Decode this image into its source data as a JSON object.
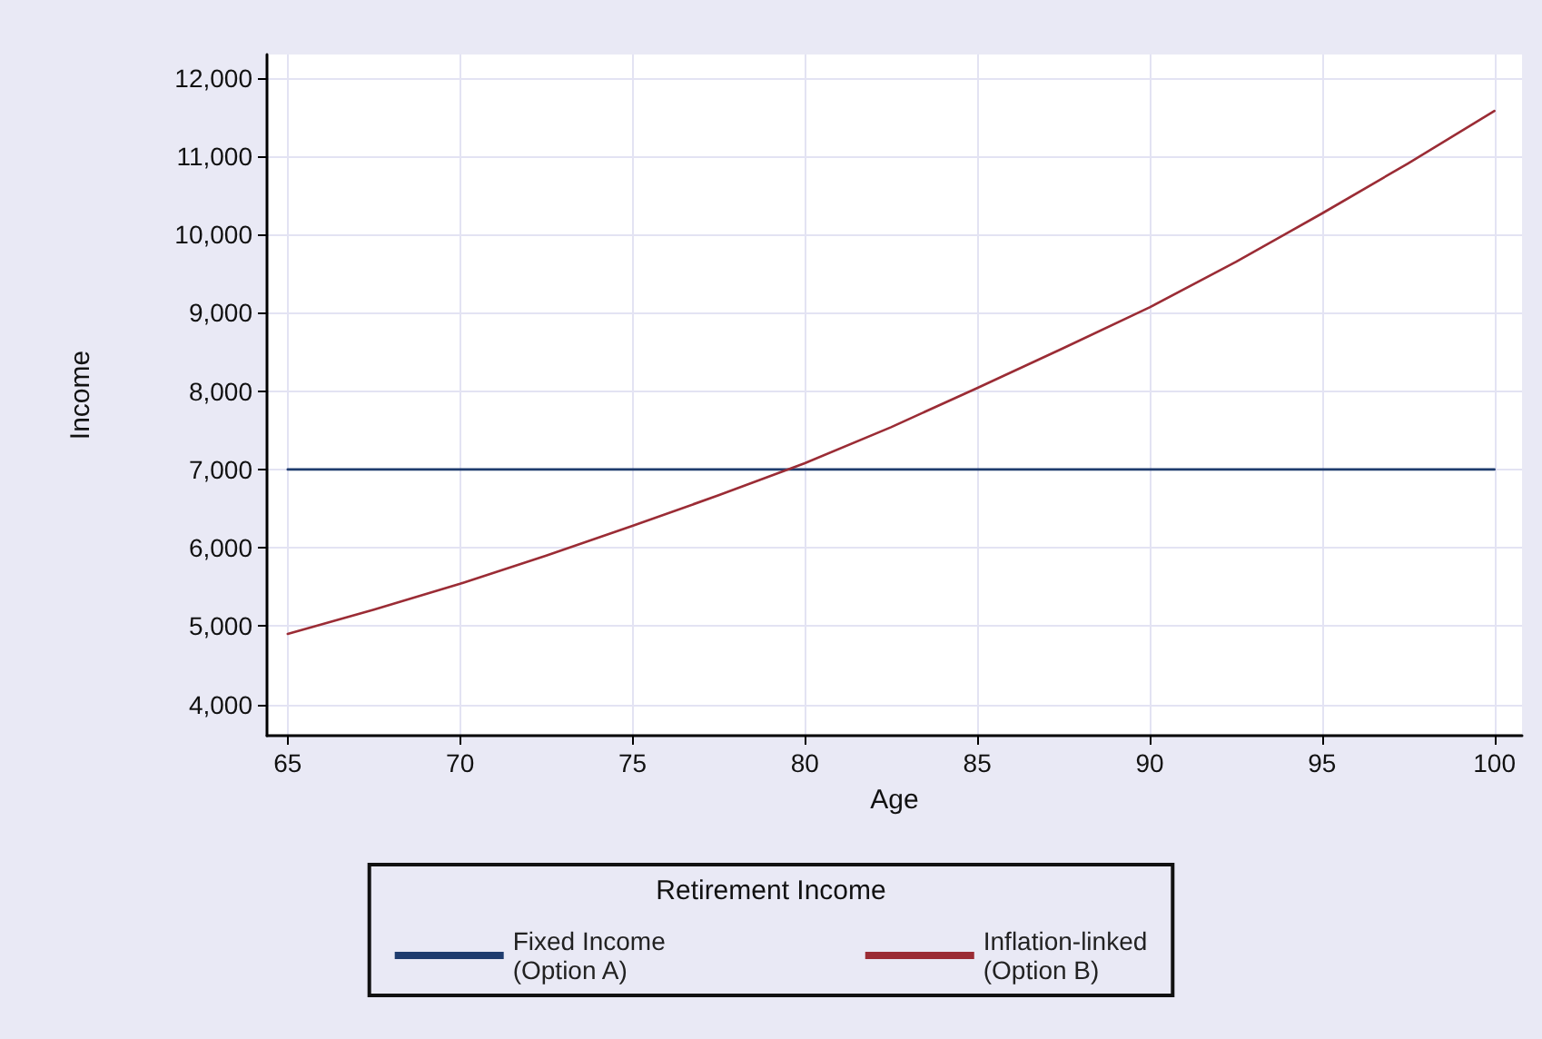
{
  "chart_data": {
    "type": "line",
    "xlabel": "Age",
    "ylabel": "Income",
    "legend_title": "Retirement Income",
    "x": [
      65,
      67.5,
      70,
      72.5,
      75,
      77.5,
      80,
      82.5,
      85,
      87.5,
      90,
      92.5,
      95,
      97.5,
      100
    ],
    "series": [
      {
        "name": "Fixed Income\n(Option A)",
        "color": "#1f3c6e",
        "values": [
          7000,
          7000,
          7000,
          7000,
          7000,
          7000,
          7000,
          7000,
          7000,
          7000,
          7000,
          7000,
          7000,
          7000,
          7000
        ]
      },
      {
        "name": "Inflation-linked\n(Option B)",
        "color": "#9b2c35",
        "values": [
          4900,
          5210,
          5540,
          5900,
          6280,
          6670,
          7080,
          7540,
          8040,
          8550,
          9070,
          9650,
          10270,
          10910,
          11580
        ]
      }
    ],
    "xlim": [
      64.4,
      100.8
    ],
    "xticks": [
      65,
      70,
      75,
      80,
      85,
      90,
      95,
      100
    ],
    "ylim": [
      3600,
      12300
    ],
    "yticks": [
      {
        "value": 4000,
        "label": "4,000"
      },
      {
        "value": 5000,
        "label": "5,000"
      },
      {
        "value": 6000,
        "label": "6,000"
      },
      {
        "value": 7000,
        "label": "7,000"
      },
      {
        "value": 8000,
        "label": "8,000"
      },
      {
        "value": 9000,
        "label": "9,000"
      },
      {
        "value": 10000,
        "label": "10,000"
      },
      {
        "value": 11000,
        "label": "11,000"
      },
      {
        "value": 12000,
        "label": "12,000"
      }
    ],
    "grid": true,
    "legend": "bottom",
    "marker": "none",
    "line_style": "solid"
  }
}
